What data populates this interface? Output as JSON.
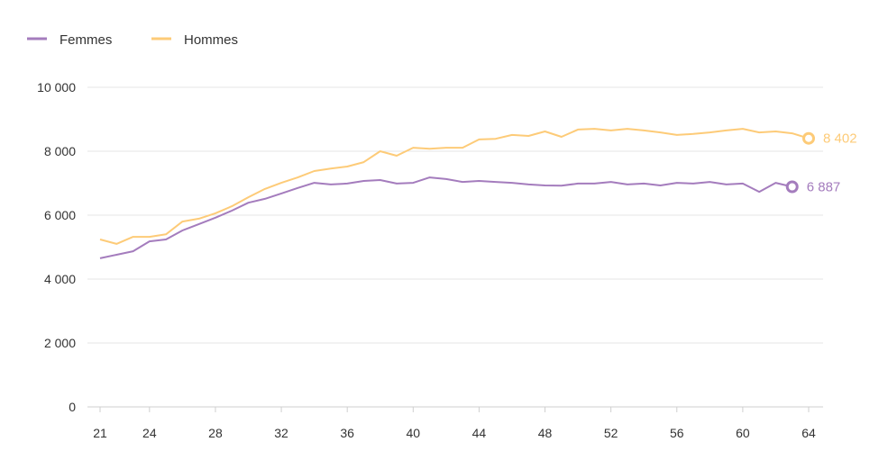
{
  "chart_data": {
    "type": "line",
    "title": "",
    "xlabel": "",
    "ylabel": "",
    "xlim": [
      21,
      64
    ],
    "ylim": [
      0,
      10000
    ],
    "x_ticks": [
      21,
      24,
      28,
      32,
      36,
      40,
      44,
      48,
      52,
      56,
      60,
      64
    ],
    "y_ticks": [
      0,
      2000,
      4000,
      6000,
      8000,
      10000
    ],
    "y_tick_labels": [
      "0",
      "2 000",
      "4 000",
      "6 000",
      "8 000",
      "10 000"
    ],
    "grid": "horizontal",
    "legend_position": "top-left",
    "series": [
      {
        "name": "Femmes",
        "color": "#a47cbd",
        "x": [
          21,
          22,
          23,
          24,
          25,
          26,
          27,
          28,
          29,
          30,
          31,
          32,
          33,
          34,
          35,
          36,
          37,
          38,
          39,
          40,
          41,
          42,
          43,
          44,
          45,
          46,
          47,
          48,
          49,
          50,
          51,
          52,
          53,
          54,
          55,
          56,
          57,
          58,
          59,
          60,
          61,
          62,
          63
        ],
        "values": [
          4650,
          4760,
          4870,
          5180,
          5240,
          5520,
          5720,
          5920,
          6140,
          6390,
          6510,
          6680,
          6850,
          7010,
          6960,
          6990,
          7070,
          7100,
          6990,
          7010,
          7180,
          7130,
          7040,
          7070,
          7040,
          7010,
          6960,
          6930,
          6920,
          6990,
          6990,
          7040,
          6960,
          6990,
          6930,
          7010,
          6990,
          7040,
          6960,
          6990,
          6730,
          7010,
          6887
        ],
        "end_label": "6 887"
      },
      {
        "name": "Hommes",
        "color": "#fdcb78",
        "x": [
          21,
          22,
          23,
          24,
          25,
          26,
          27,
          28,
          29,
          30,
          31,
          32,
          33,
          34,
          35,
          36,
          37,
          38,
          39,
          40,
          41,
          42,
          43,
          44,
          45,
          46,
          47,
          48,
          49,
          50,
          51,
          52,
          53,
          54,
          55,
          56,
          57,
          58,
          59,
          60,
          61,
          62,
          63,
          64
        ],
        "values": [
          5240,
          5100,
          5320,
          5320,
          5400,
          5800,
          5890,
          6060,
          6280,
          6560,
          6820,
          7010,
          7180,
          7380,
          7460,
          7520,
          7660,
          8000,
          7860,
          8110,
          8080,
          8110,
          8110,
          8370,
          8390,
          8510,
          8480,
          8620,
          8450,
          8680,
          8700,
          8650,
          8700,
          8650,
          8590,
          8510,
          8540,
          8590,
          8650,
          8700,
          8590,
          8620,
          8560,
          8402
        ],
        "end_label": "8 402"
      }
    ]
  }
}
